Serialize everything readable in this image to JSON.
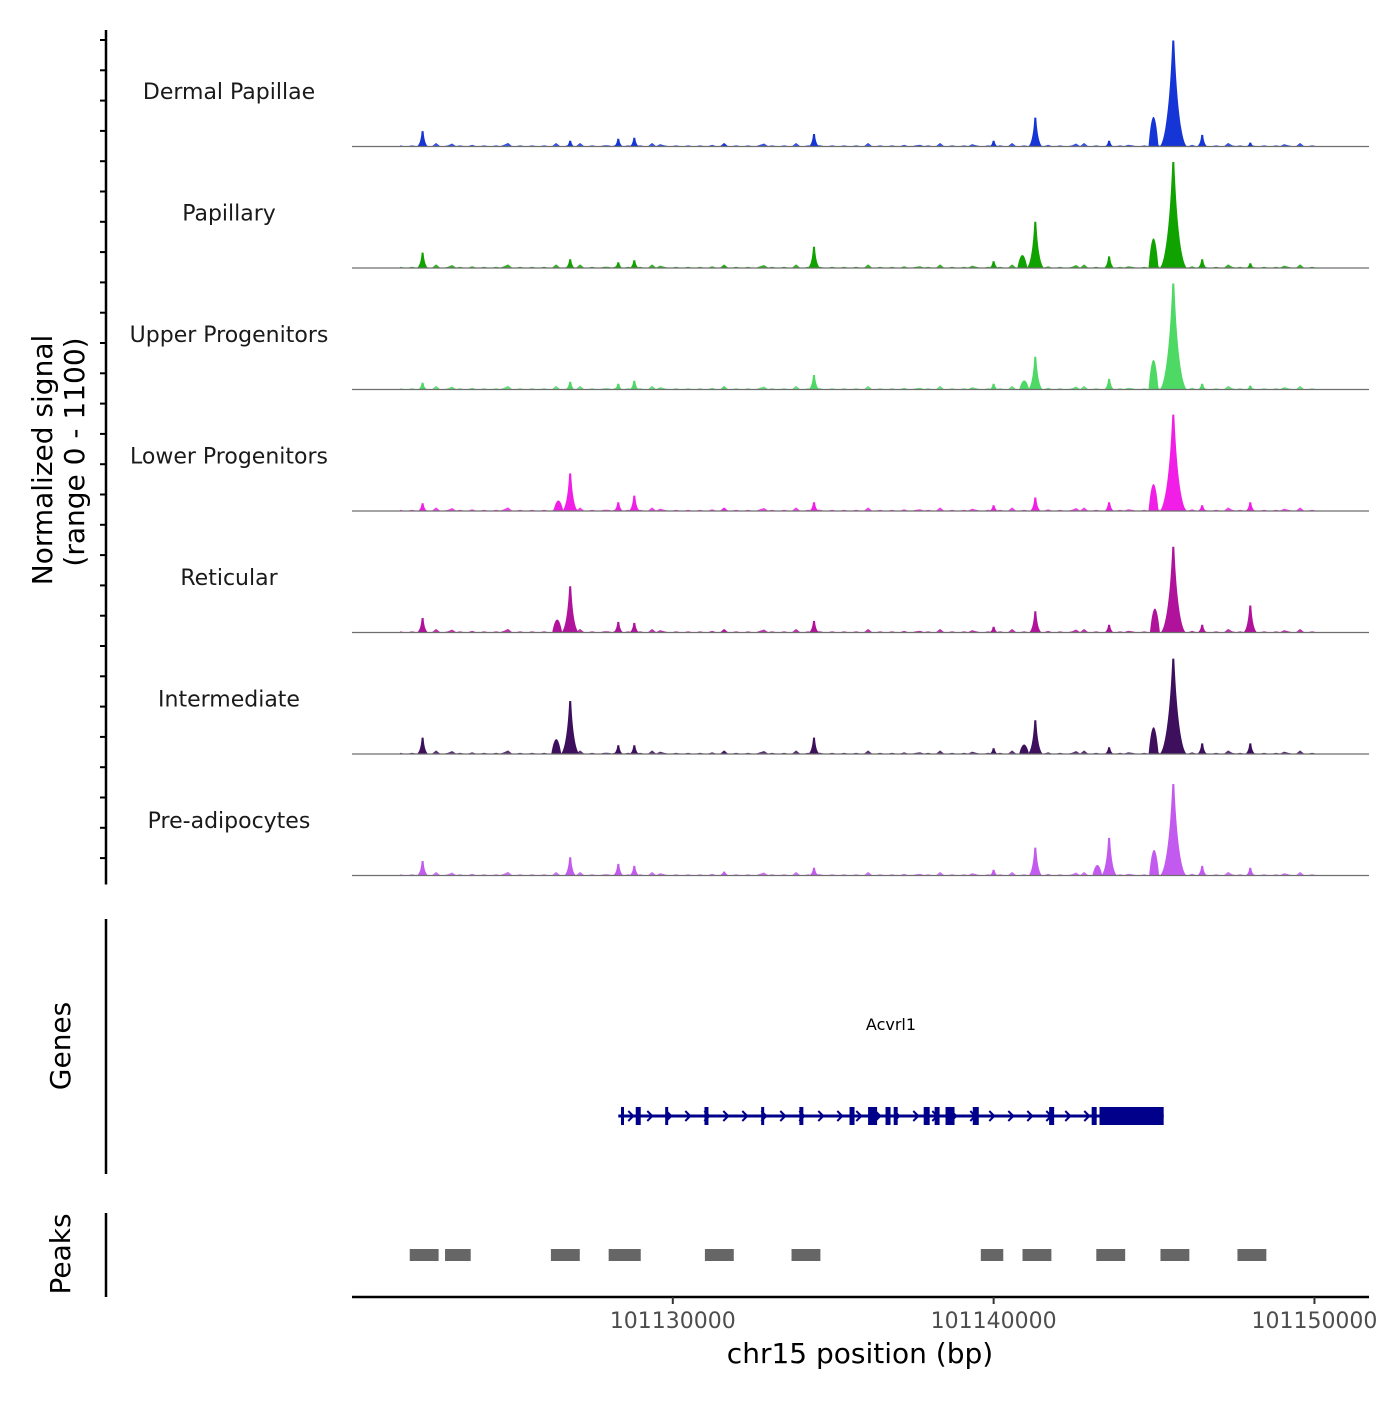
{
  "chart_data": {
    "type": "area",
    "title": "",
    "signal_axis_title_line1": "Normalized signal",
    "signal_axis_title_line2": "(range 0 - 1100)",
    "genes_axis_title": "Genes",
    "peaks_axis_title": "Peaks",
    "xlabel": "chr15 position (bp)",
    "xlim": [
      101120000,
      101151700
    ],
    "ylim": [
      0,
      1100
    ],
    "x_ticks": [
      101130000,
      101140000,
      101150000
    ],
    "x_tick_labels": [
      "101130000",
      "101140000",
      "101150000"
    ],
    "peak_positions": [
      101122200,
      101126800,
      101128300,
      101128800,
      101131600,
      101134400,
      101140000,
      101141300,
      101143600,
      101145600,
      101146500,
      101148000
    ],
    "series": [
      {
        "name": "Dermal Papillae",
        "color": "#1535d6",
        "peaks": [
          160,
          60,
          80,
          90,
          30,
          130,
          60,
          300,
          60,
          1100,
          120,
          40
        ]
      },
      {
        "name": "Papillary",
        "color": "#10a300",
        "peaks": [
          160,
          90,
          60,
          80,
          20,
          220,
          70,
          480,
          120,
          1100,
          90,
          50
        ]
      },
      {
        "name": "Upper Progenitors",
        "color": "#4ed864",
        "peaks": [
          70,
          80,
          60,
          90,
          30,
          150,
          60,
          340,
          110,
          1100,
          60,
          40
        ]
      },
      {
        "name": "Lower Progenitors",
        "color": "#f01ee6",
        "peaks": [
          80,
          390,
          90,
          160,
          30,
          90,
          60,
          140,
          90,
          1000,
          60,
          90
        ]
      },
      {
        "name": "Reticular",
        "color": "#b1129b",
        "peaks": [
          150,
          480,
          110,
          100,
          30,
          120,
          60,
          220,
          80,
          890,
          80,
          280
        ]
      },
      {
        "name": "Intermediate",
        "color": "#3d0f5c",
        "peaks": [
          170,
          550,
          90,
          90,
          30,
          170,
          60,
          350,
          70,
          990,
          110,
          110
        ]
      },
      {
        "name": "Pre-adipocytes",
        "color": "#c35af0",
        "peaks": [
          150,
          190,
          120,
          100,
          40,
          80,
          60,
          290,
          390,
          950,
          100,
          80
        ]
      }
    ],
    "gene": {
      "name": "Acvrl1",
      "strand": "+",
      "start": 101128300,
      "end": 101145300,
      "color": "#00008b"
    },
    "peak_regions": [
      [
        101121800,
        101122700
      ],
      [
        101122900,
        101123700
      ],
      [
        101126200,
        101127100
      ],
      [
        101128000,
        101129000
      ],
      [
        101131000,
        101131900
      ],
      [
        101133700,
        101134600
      ],
      [
        101139600,
        101140300
      ],
      [
        101140900,
        101141800
      ],
      [
        101143200,
        101144100
      ],
      [
        101145200,
        101146100
      ],
      [
        101147600,
        101148500
      ]
    ],
    "peak_color": "#666666"
  }
}
